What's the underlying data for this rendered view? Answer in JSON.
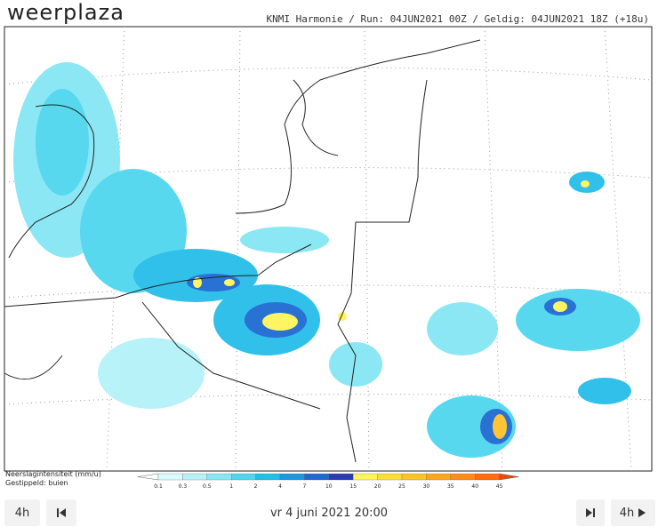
{
  "header": {
    "logo": "weerplaza",
    "info": "KNMI Harmonie / Run: 04JUN2021 00Z / Geldig: 04JUN2021 18Z (+18u)"
  },
  "legend": {
    "title": "Neerslagintensiteit (mm/u)",
    "subtitle": "Gestippeld: buien",
    "scale": [
      {
        "label": "0.1",
        "color": "#d8fbfd"
      },
      {
        "label": "0.3",
        "color": "#b4f2f8"
      },
      {
        "label": "0.5",
        "color": "#86e6f4"
      },
      {
        "label": "1",
        "color": "#4fd6ef"
      },
      {
        "label": "2",
        "color": "#25bde8"
      },
      {
        "label": "4",
        "color": "#1f97e0"
      },
      {
        "label": "7",
        "color": "#1f6ad2"
      },
      {
        "label": "10",
        "color": "#2a3cb4"
      },
      {
        "label": "15",
        "color": "#fff45a"
      },
      {
        "label": "20",
        "color": "#ffdc3c"
      },
      {
        "label": "25",
        "color": "#ffc22a"
      },
      {
        "label": "30",
        "color": "#ffa524"
      },
      {
        "label": "35",
        "color": "#ff8a1e"
      },
      {
        "label": "40",
        "color": "#ff6c14"
      },
      {
        "label": "45",
        "color": "#e84a08"
      }
    ]
  },
  "nav": {
    "step_back": "4h",
    "date": "vr 4 juni 2021 20:00",
    "step_forward": "4h"
  }
}
